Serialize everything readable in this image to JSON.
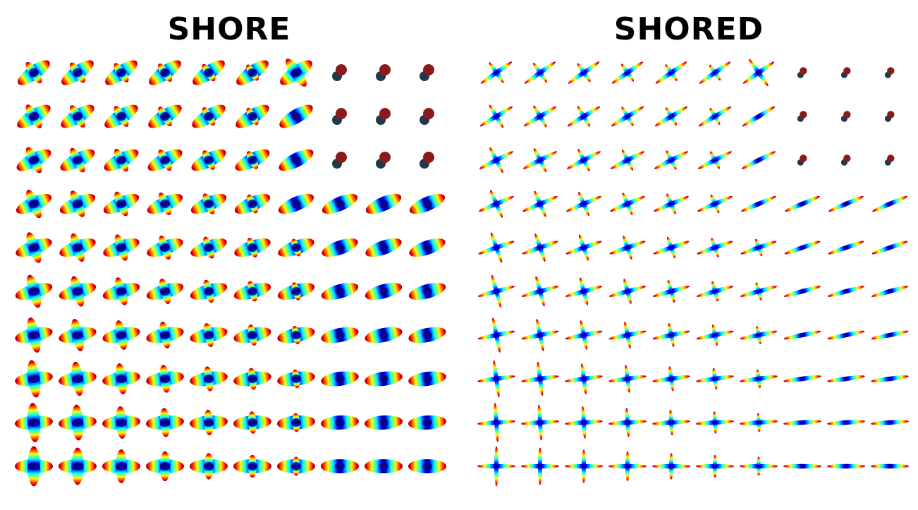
{
  "panels": [
    {
      "id": "shore",
      "title": "SHORE",
      "glyph_style": "blob",
      "rows": 10,
      "cols": 10
    },
    {
      "id": "shored",
      "title": "SHORED",
      "glyph_style": "sharp",
      "rows": 10,
      "cols": 10
    }
  ],
  "colormap": [
    "#00007f",
    "#0000ff",
    "#007fff",
    "#00ffff",
    "#7fff7f",
    "#ffff00",
    "#ff7f00",
    "#ff0000",
    "#7f0000"
  ],
  "isotropic_color_top": "#8b1a1a",
  "isotropic_color_bottom": "#1f3a4a"
}
